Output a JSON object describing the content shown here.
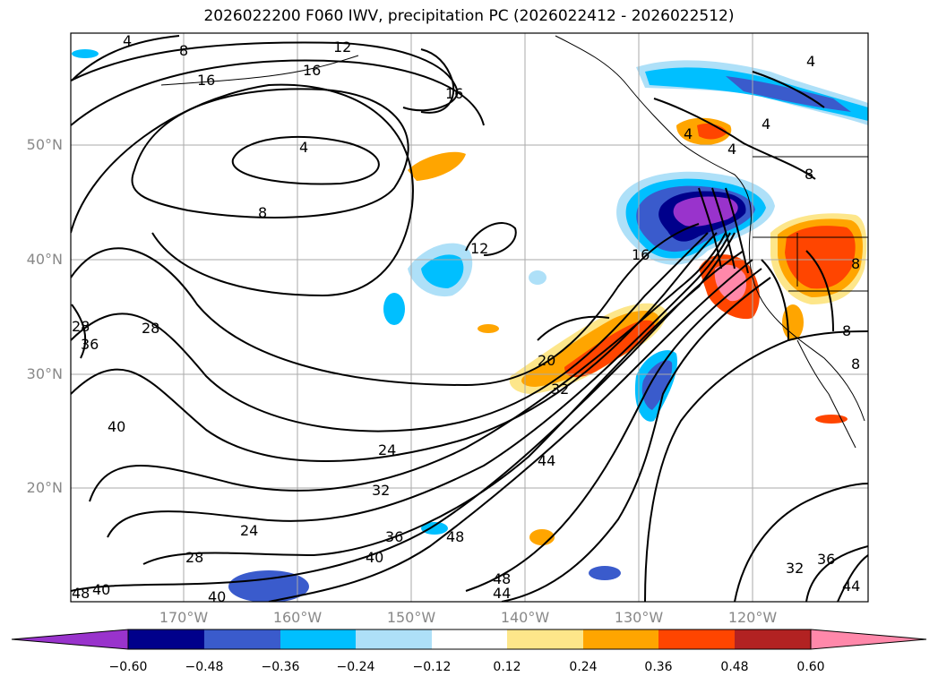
{
  "title": "2026022200 F060 IWV, precipitation PC (2026022412 - 2026022512)",
  "lat_labels": [
    "50°N",
    "40°N",
    "30°N",
    "20°N"
  ],
  "lon_labels": [
    "170°W",
    "160°W",
    "150°W",
    "140°W",
    "130°W",
    "120°W"
  ],
  "colorbar": {
    "ticks": [
      "−0.60",
      "−0.48",
      "−0.36",
      "−0.24",
      "−0.12",
      "0.12",
      "0.24",
      "0.36",
      "0.48",
      "0.60"
    ],
    "colors": [
      "#9933cc",
      "#00008b",
      "#3a5bcc",
      "#00bfff",
      "#aee0f8",
      "#ffffff",
      "#fde68a",
      "#ffa500",
      "#ff4500",
      "#b22222",
      "#ff88aa"
    ]
  },
  "contour_labels": [
    "4",
    "8",
    "12",
    "16",
    "16",
    "16",
    "4",
    "8",
    "4",
    "4",
    "4",
    "8",
    "12",
    "16",
    "28",
    "28",
    "36",
    "40",
    "20",
    "32",
    "24",
    "32",
    "44",
    "48",
    "36",
    "40",
    "24",
    "28",
    "40",
    "48",
    "48",
    "44",
    "32",
    "36",
    "40",
    "44",
    "8",
    "8",
    "8",
    "4"
  ]
}
